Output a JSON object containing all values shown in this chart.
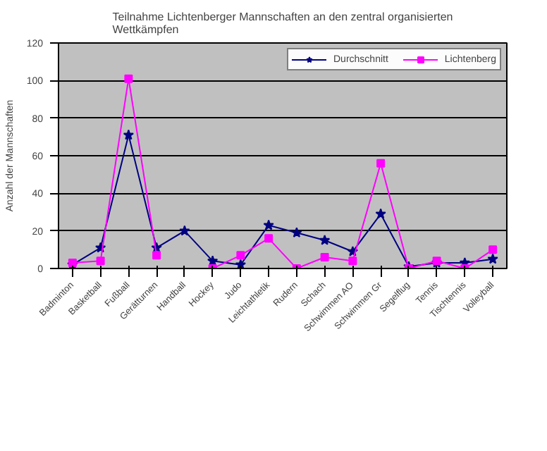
{
  "chart_data": {
    "type": "line",
    "title": "Teilnahme Lichtenberger Mannschaften an den zentral organisierten Wettkämpfen",
    "ylabel": "Anzahl der Mannschaften",
    "categories": [
      "Badminton",
      "Basketball",
      "Fußball",
      "Gerätturnen",
      "Handball",
      "Hockey",
      "Judo",
      "Leichtathletik",
      "Rudern",
      "Schach",
      "Schwimmen AO",
      "Schwimmen Gr",
      "Segelflug",
      "Tennis",
      "Tischtennis",
      "Volleyball"
    ],
    "series": [
      {
        "name": "Durchschnitt",
        "color": "#000080",
        "marker": "star",
        "values": [
          2,
          11,
          71,
          11,
          20,
          4,
          2,
          23,
          19,
          15,
          9,
          29,
          1,
          3,
          3,
          5
        ]
      },
      {
        "name": "Lichtenberg",
        "color": "#ff00ff",
        "marker": "square",
        "values": [
          3,
          4,
          101,
          7,
          null,
          0,
          7,
          16,
          0,
          6,
          4,
          56,
          0,
          4,
          0,
          10
        ]
      }
    ],
    "ylim": [
      0,
      120
    ],
    "yticks": [
      0,
      20,
      40,
      60,
      80,
      100,
      120
    ],
    "grid": "y",
    "legend": "top right",
    "line_style": "solid"
  }
}
